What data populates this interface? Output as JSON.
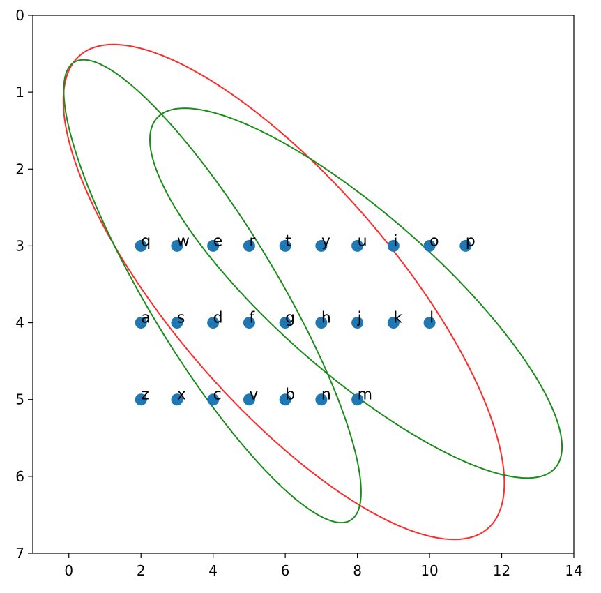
{
  "chart_data": {
    "type": "scatter",
    "xlim": [
      -1,
      14
    ],
    "ylim": [
      7,
      0
    ],
    "xticks": [
      0,
      2,
      4,
      6,
      8,
      10,
      12,
      14
    ],
    "yticks": [
      0,
      1,
      2,
      3,
      4,
      5,
      6,
      7
    ],
    "color": "#1f77b4",
    "x": [
      2,
      3,
      4,
      5,
      6,
      7,
      8,
      9,
      10,
      11,
      2,
      3,
      4,
      5,
      6,
      7,
      8,
      9,
      10,
      2,
      3,
      4,
      5,
      6,
      7,
      8
    ],
    "y": [
      3,
      3,
      3,
      3,
      3,
      3,
      3,
      3,
      3,
      3,
      4,
      4,
      4,
      4,
      4,
      4,
      4,
      4,
      4,
      5,
      5,
      5,
      5,
      5,
      5,
      5
    ],
    "labels": [
      "q",
      "w",
      "e",
      "r",
      "t",
      "y",
      "u",
      "i",
      "o",
      "p",
      "a",
      "s",
      "d",
      "f",
      "g",
      "h",
      "j",
      "k",
      "l",
      "z",
      "x",
      "c",
      "v",
      "b",
      "n",
      "m"
    ],
    "ellipses": [
      {
        "center": [
          5.96,
          3.6
        ],
        "width": 13.3,
        "height": 3.76,
        "angle": 24.2,
        "color": "#ff2a2a"
      },
      {
        "center": [
          3.98,
          3.59
        ],
        "width": 9.9,
        "height": 2.5,
        "angle": 34.9,
        "color": "#1a8c1a"
      },
      {
        "center": [
          7.96,
          3.615
        ],
        "width": 12.14,
        "height": 2.52,
        "angle": 20.2,
        "color": "#1a8c1a"
      }
    ]
  }
}
